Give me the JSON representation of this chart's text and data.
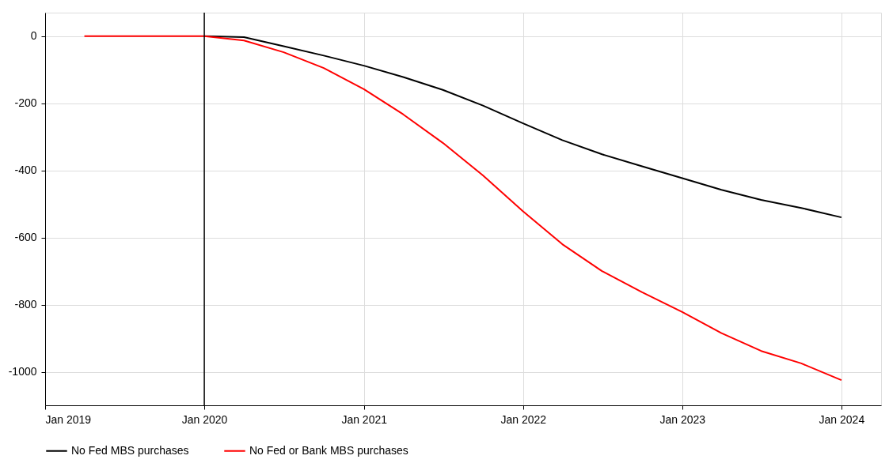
{
  "chart_data": {
    "type": "line",
    "x": [
      "2019-04",
      "2019-07",
      "2019-10",
      "2020-01",
      "2020-04",
      "2020-07",
      "2020-10",
      "2021-01",
      "2021-04",
      "2021-07",
      "2021-10",
      "2022-01",
      "2022-04",
      "2022-07",
      "2022-10",
      "2023-01",
      "2023-04",
      "2023-07",
      "2023-10",
      "2024-01"
    ],
    "series": [
      {
        "name": "No Fed MBS purchases",
        "color": "#000000",
        "values": [
          null,
          null,
          null,
          0,
          -3,
          -30,
          -58,
          -88,
          -122,
          -160,
          -207,
          -260,
          -310,
          -352,
          -388,
          -423,
          -458,
          -488,
          -512,
          -540
        ]
      },
      {
        "name": "No Fed or Bank MBS purchases",
        "color": "#ff0000",
        "values": [
          0,
          0,
          0,
          0,
          -13,
          -48,
          -95,
          -158,
          -233,
          -318,
          -415,
          -522,
          -620,
          -700,
          -763,
          -822,
          -885,
          -938,
          -975,
          -1025
        ]
      }
    ],
    "xlim": [
      "2019-01",
      "2024-04"
    ],
    "xticks": [
      {
        "value": "2019-01",
        "label": "Jan 2019"
      },
      {
        "value": "2020-01",
        "label": "Jan 2020"
      },
      {
        "value": "2021-01",
        "label": "Jan 2021"
      },
      {
        "value": "2022-01",
        "label": "Jan 2022"
      },
      {
        "value": "2023-01",
        "label": "Jan 2023"
      },
      {
        "value": "2024-01",
        "label": "Jan 2024"
      }
    ],
    "ylim": [
      -1100,
      70
    ],
    "yticks": [
      0,
      -200,
      -400,
      -600,
      -800,
      -1000
    ],
    "ref_lines": [
      {
        "axis": "x",
        "value": "2020-01",
        "color": "#000000"
      }
    ],
    "grid": true,
    "legend": "bottom",
    "line_style": "solid",
    "marker": "none"
  }
}
